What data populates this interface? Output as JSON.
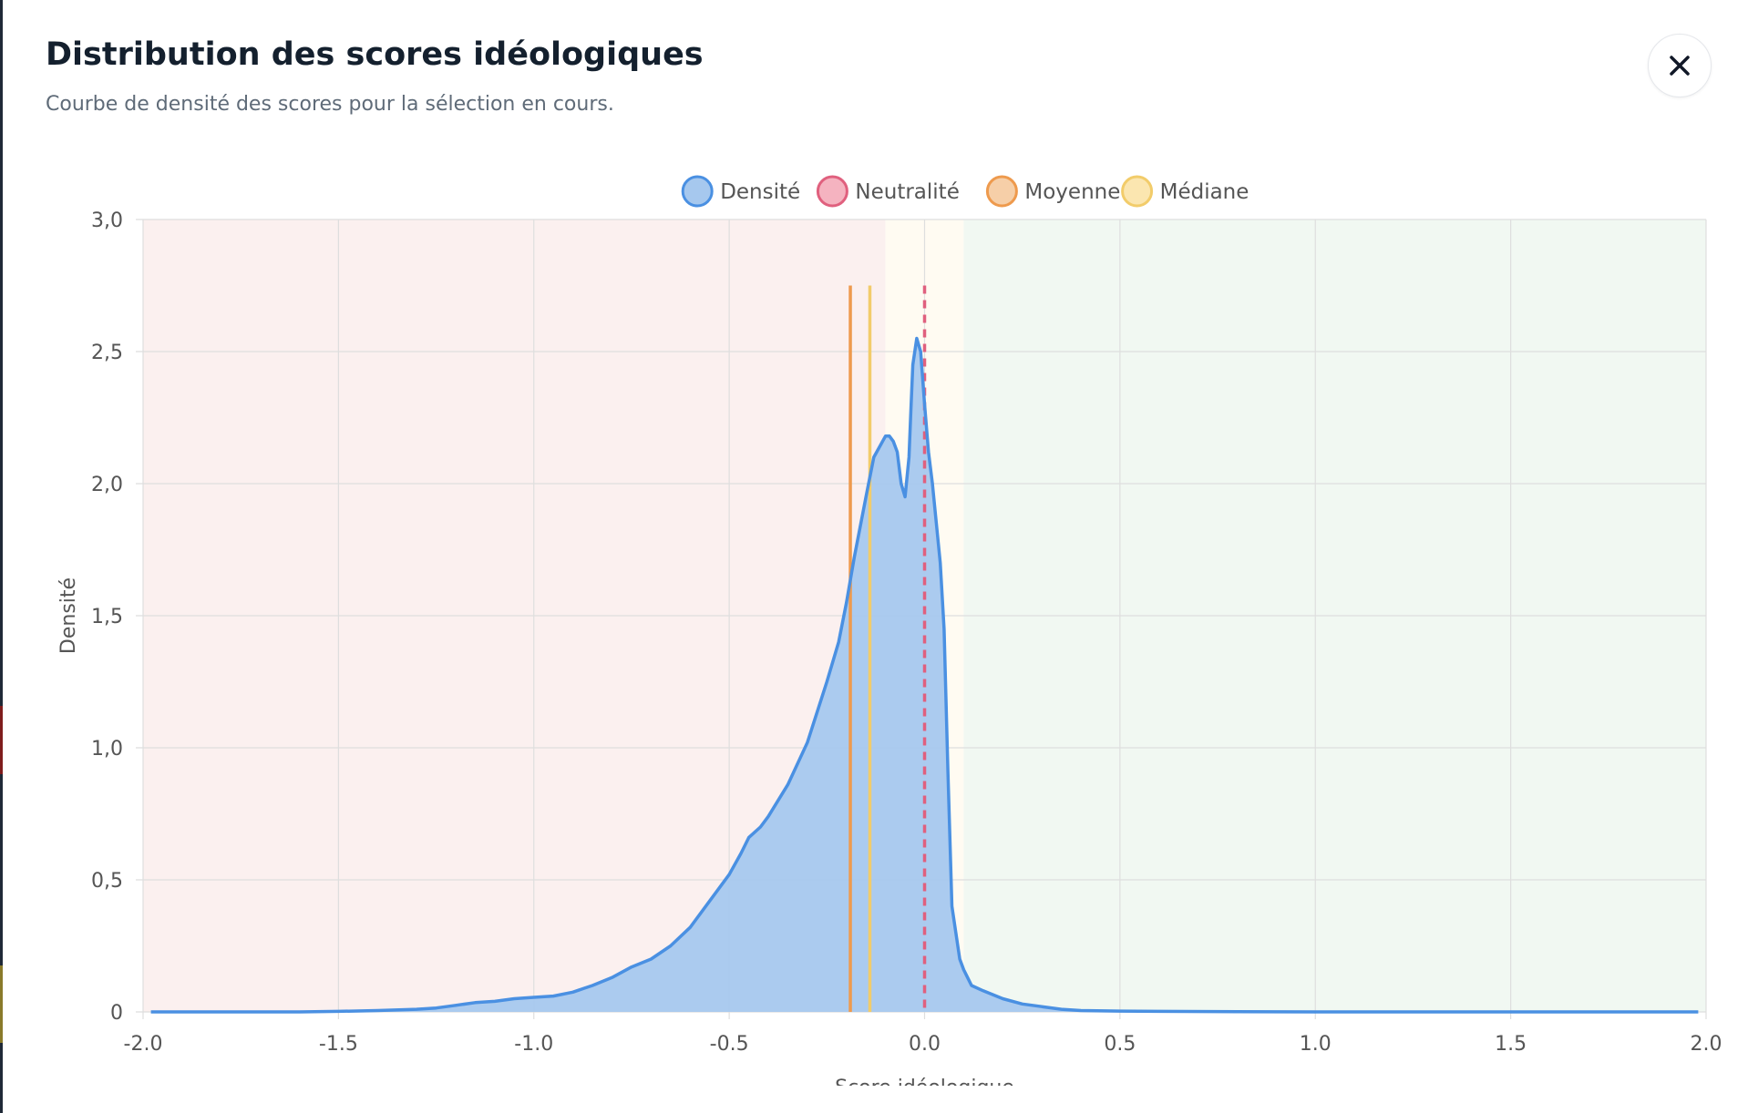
{
  "modal": {
    "title": "Distribution des scores idéologiques",
    "subtitle": "Courbe de densité des scores pour la sélection en cours.",
    "close_icon": "close-icon"
  },
  "chart_data": {
    "type": "area",
    "title": "",
    "xlabel": "Score idéologique",
    "ylabel": "Densité",
    "xlim": [
      -2.0,
      2.0
    ],
    "ylim": [
      0,
      3.0
    ],
    "x_ticks": [
      -2.0,
      -1.5,
      -1.0,
      -0.5,
      0.0,
      0.5,
      1.0,
      1.5,
      2.0
    ],
    "x_tick_labels": [
      "-2.0",
      "-1.5",
      "-1.0",
      "-0.5",
      "0.0",
      "0.5",
      "1.0",
      "1.5",
      "2.0"
    ],
    "y_ticks": [
      0,
      0.5,
      1.0,
      1.5,
      2.0,
      2.5,
      3.0
    ],
    "y_tick_labels": [
      "0",
      "0,5",
      "1,0",
      "1,5",
      "2,0",
      "2,5",
      "3,0"
    ],
    "grid": true,
    "legend_position": "top-center",
    "legend": [
      {
        "label": "Densité",
        "fill": "#a6c8ee",
        "stroke": "#4a90e2"
      },
      {
        "label": "Neutralité",
        "fill": "#f5b3c0",
        "stroke": "#e0607e"
      },
      {
        "label": "Moyenne",
        "fill": "#f6cfa8",
        "stroke": "#ee9a4d"
      },
      {
        "label": "Médiane",
        "fill": "#fbe6b0",
        "stroke": "#f2cc6a"
      }
    ],
    "background_zones": [
      {
        "from": -2.0,
        "to": -0.1,
        "color": "#fbf0ef"
      },
      {
        "from": -0.1,
        "to": 0.1,
        "color": "#fffbf2"
      },
      {
        "from": 0.1,
        "to": 2.0,
        "color": "#f1f8f2"
      }
    ],
    "series": [
      {
        "name": "Densité",
        "color": "#4a90e2",
        "fill": "#a6c8ee",
        "x": [
          -1.98,
          -1.8,
          -1.6,
          -1.5,
          -1.4,
          -1.3,
          -1.25,
          -1.2,
          -1.15,
          -1.1,
          -1.05,
          -1.0,
          -0.95,
          -0.9,
          -0.87,
          -0.85,
          -0.8,
          -0.75,
          -0.7,
          -0.65,
          -0.6,
          -0.55,
          -0.5,
          -0.47,
          -0.45,
          -0.42,
          -0.4,
          -0.35,
          -0.3,
          -0.25,
          -0.22,
          -0.2,
          -0.18,
          -0.15,
          -0.13,
          -0.1,
          -0.09,
          -0.08,
          -0.07,
          -0.06,
          -0.05,
          -0.04,
          -0.035,
          -0.03,
          -0.02,
          -0.01,
          0.0,
          0.01,
          0.02,
          0.03,
          0.04,
          0.05,
          0.06,
          0.07,
          0.08,
          0.09,
          0.1,
          0.11,
          0.12,
          0.15,
          0.2,
          0.25,
          0.3,
          0.35,
          0.4,
          0.5,
          0.6,
          0.8,
          1.0,
          1.5,
          1.98
        ],
        "y": [
          0.0,
          0.0,
          0.0,
          0.002,
          0.005,
          0.01,
          0.015,
          0.025,
          0.035,
          0.04,
          0.05,
          0.055,
          0.06,
          0.075,
          0.09,
          0.1,
          0.13,
          0.17,
          0.2,
          0.25,
          0.32,
          0.42,
          0.52,
          0.6,
          0.66,
          0.7,
          0.74,
          0.86,
          1.02,
          1.25,
          1.4,
          1.55,
          1.72,
          1.95,
          2.1,
          2.18,
          2.18,
          2.16,
          2.12,
          2.0,
          1.95,
          2.1,
          2.28,
          2.45,
          2.55,
          2.5,
          2.3,
          2.12,
          2.0,
          1.85,
          1.7,
          1.45,
          0.9,
          0.4,
          0.3,
          0.2,
          0.16,
          0.13,
          0.1,
          0.08,
          0.05,
          0.03,
          0.02,
          0.01,
          0.005,
          0.003,
          0.002,
          0.001,
          0.0,
          0.0,
          0.0
        ]
      }
    ],
    "reference_lines": [
      {
        "name": "Neutralité",
        "x": 0.0,
        "color": "#e0607e",
        "dashed": true,
        "top": 2.75
      },
      {
        "name": "Moyenne",
        "x": -0.19,
        "color": "#ee9a4d",
        "dashed": false,
        "top": 2.75
      },
      {
        "name": "Médiane",
        "x": -0.14,
        "color": "#f2cc6a",
        "dashed": false,
        "top": 2.75
      }
    ]
  }
}
